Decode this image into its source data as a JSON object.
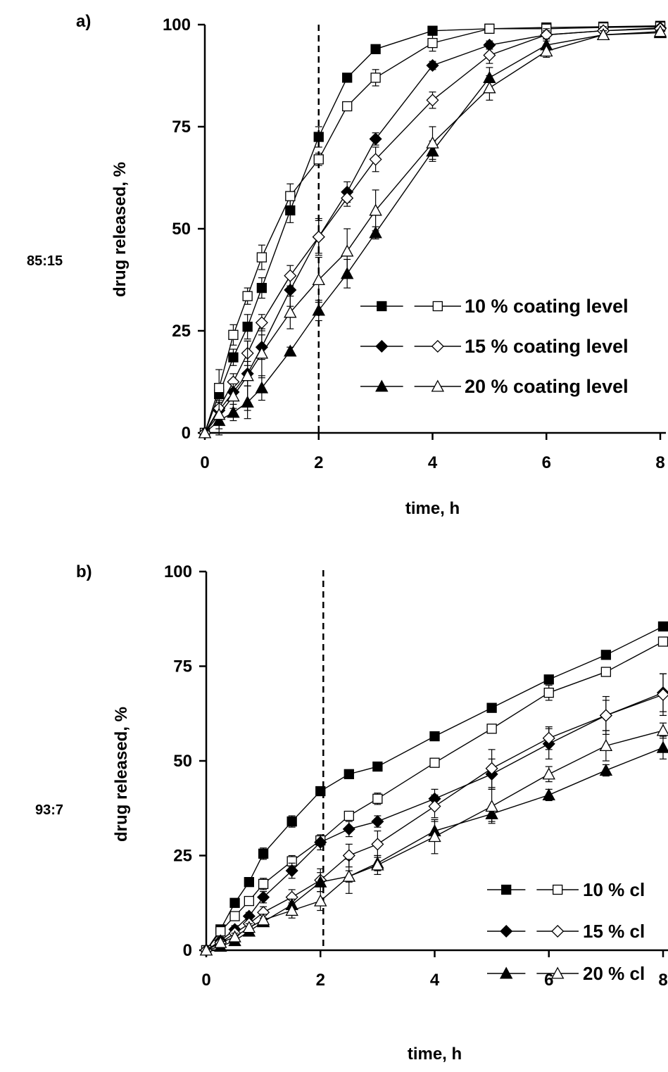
{
  "chart_data": [
    {
      "type": "line",
      "panel_label": "a)",
      "side_label": "85:15",
      "xlabel": "time, h",
      "ylabel": "drug released, %",
      "xlim": [
        0,
        8
      ],
      "ylim": [
        0,
        100
      ],
      "xticks": [
        "0",
        "2",
        "4",
        "6",
        "8"
      ],
      "yticks": [
        "0",
        "25",
        "50",
        "75",
        "100"
      ],
      "vline_x": 2,
      "legend_position": "lower-right",
      "legend_labels": [
        "10 % coating level",
        "15 % coating level",
        "20 % coating level"
      ],
      "series": [
        {
          "marker": "square-filled",
          "x": [
            0,
            0.25,
            0.5,
            0.75,
            1,
            1.5,
            2,
            2.5,
            3,
            4,
            5,
            6,
            7,
            8
          ],
          "y": [
            0,
            9.5,
            18.5,
            26,
            35.5,
            54.5,
            72.5,
            87,
            94,
            98.5,
            99,
            99.3,
            99.5,
            99.7
          ],
          "err": [
            0,
            2,
            2,
            3,
            2.5,
            3,
            2.5,
            1,
            1,
            1,
            0.5,
            0.5,
            0.5,
            0.5
          ]
        },
        {
          "marker": "square-open",
          "x": [
            0,
            0.25,
            0.5,
            0.75,
            1,
            1.5,
            2,
            2.5,
            3,
            4,
            5,
            6,
            7,
            8
          ],
          "y": [
            0,
            11,
            24,
            33.5,
            43,
            58,
            67,
            80,
            87,
            95.5,
            99,
            99,
            99.3,
            99.5
          ],
          "err": [
            0,
            4.5,
            2.5,
            2,
            3,
            3,
            1.5,
            1,
            2,
            2,
            1,
            0.5,
            0.5,
            0.5
          ]
        },
        {
          "marker": "diamond-filled",
          "x": [
            0,
            0.25,
            0.5,
            0.75,
            1,
            1.5,
            2,
            2.5,
            3,
            4,
            5,
            6,
            7,
            8
          ],
          "y": [
            0,
            5.5,
            10,
            14.5,
            21,
            35,
            48,
            59,
            72,
            90,
            95,
            97.5,
            98.5,
            99.2
          ],
          "err": [
            0,
            2,
            2,
            3,
            3,
            4,
            4,
            2.5,
            1.5,
            1,
            1,
            1,
            0.5,
            0.5
          ]
        },
        {
          "marker": "diamond-open",
          "x": [
            0,
            0.25,
            0.5,
            0.75,
            1,
            1.5,
            2,
            2.5,
            3,
            4,
            5,
            6,
            7,
            8
          ],
          "y": [
            0,
            6,
            12.5,
            19.5,
            27,
            38.5,
            48,
            57.5,
            67,
            81.5,
            92.5,
            97.5,
            98.5,
            99
          ],
          "err": [
            0,
            2,
            2,
            3,
            2,
            2.5,
            4.5,
            2,
            3,
            2,
            2,
            1.5,
            1,
            0.5
          ]
        },
        {
          "marker": "triangle-filled",
          "x": [
            0,
            0.25,
            0.5,
            0.75,
            1,
            1.5,
            2,
            2.5,
            3,
            4,
            5,
            6,
            7,
            8
          ],
          "y": [
            0,
            3,
            5,
            7.5,
            11,
            20,
            30,
            39,
            49,
            69,
            87,
            95,
            97.5,
            98
          ],
          "err": [
            0,
            2,
            2,
            4,
            3,
            1,
            2.5,
            3.5,
            1.5,
            2.5,
            2.5,
            1.5,
            1,
            0.5
          ]
        },
        {
          "marker": "triangle-open",
          "x": [
            0,
            0.25,
            0.5,
            0.75,
            1,
            1.5,
            2,
            2.5,
            3,
            4,
            5,
            6,
            7,
            8
          ],
          "y": [
            0,
            4.5,
            9,
            14,
            19.5,
            29.5,
            37.5,
            44.5,
            54.5,
            71,
            84.5,
            93.5,
            97.5,
            98.3
          ],
          "err": [
            0,
            5,
            3,
            8.5,
            6,
            4,
            5.5,
            5.5,
            5,
            4,
            3,
            1.5,
            1,
            0.5
          ]
        }
      ]
    },
    {
      "type": "line",
      "panel_label": "b)",
      "side_label": "93:7",
      "xlabel": "time, h",
      "ylabel": "drug released, %",
      "xlim": [
        0,
        8
      ],
      "ylim": [
        0,
        100
      ],
      "xticks": [
        "0",
        "2",
        "4",
        "6",
        "8"
      ],
      "yticks": [
        "0",
        "25",
        "50",
        "75",
        "100"
      ],
      "vline_x": 2.05,
      "legend_position": "lower-right",
      "legend_labels": [
        "10 % cl",
        "15 % cl",
        "20 % cl"
      ],
      "series": [
        {
          "marker": "square-filled",
          "x": [
            0,
            0.25,
            0.5,
            0.75,
            1,
            1.5,
            2,
            2.5,
            3,
            4,
            5,
            6,
            7,
            8
          ],
          "y": [
            0,
            5.5,
            12.5,
            18,
            25.5,
            34,
            42,
            46.5,
            48.5,
            56.5,
            64,
            71.5,
            78,
            85.5
          ],
          "err": [
            0,
            1,
            1,
            1,
            1.5,
            1.5,
            1,
            1,
            1,
            1,
            1,
            1,
            1,
            1
          ]
        },
        {
          "marker": "square-open",
          "x": [
            0,
            0.25,
            0.5,
            0.75,
            1,
            1.5,
            2,
            2.5,
            3,
            4,
            5,
            6,
            7,
            8
          ],
          "y": [
            0,
            5,
            9,
            13,
            17.5,
            23.5,
            29,
            35.5,
            40,
            49.5,
            58.5,
            68,
            73.5,
            81.5
          ],
          "err": [
            0,
            1,
            1,
            1,
            1.5,
            1.5,
            1,
            1,
            1.5,
            1,
            1,
            2,
            1,
            1
          ]
        },
        {
          "marker": "diamond-filled",
          "x": [
            0,
            0.25,
            0.5,
            0.75,
            1,
            1.5,
            2,
            2.5,
            3,
            4,
            5,
            6,
            7,
            8
          ],
          "y": [
            0,
            2.5,
            5.5,
            9,
            14,
            21,
            28.5,
            32,
            34,
            40,
            46.5,
            54.5,
            62,
            68
          ],
          "err": [
            0,
            1,
            1,
            1,
            1.5,
            2,
            2,
            2,
            1.5,
            2.5,
            4,
            4,
            5,
            5
          ]
        },
        {
          "marker": "diamond-open",
          "x": [
            0,
            0.25,
            0.5,
            0.75,
            1,
            1.5,
            2,
            2.5,
            3,
            4,
            5,
            6,
            7,
            8
          ],
          "y": [
            0,
            2,
            4.5,
            7,
            10,
            14,
            18.5,
            25,
            28,
            38,
            48,
            56,
            62,
            67.5
          ],
          "err": [
            0,
            1,
            1,
            1.5,
            1.5,
            2,
            3,
            3,
            3.5,
            3,
            5,
            3,
            4,
            5.5
          ]
        },
        {
          "marker": "triangle-filled",
          "x": [
            0,
            0.25,
            0.5,
            0.75,
            1,
            1.5,
            2,
            2.5,
            3,
            4,
            5,
            6,
            7,
            8
          ],
          "y": [
            0,
            1,
            2.5,
            5,
            7.5,
            12,
            18,
            19.5,
            23,
            31.5,
            36,
            41,
            47.5,
            53.5
          ],
          "err": [
            0,
            1,
            1,
            1,
            1,
            1.5,
            2.5,
            1.5,
            2,
            2.5,
            2,
            1.5,
            1.5,
            3
          ]
        },
        {
          "marker": "triangle-open",
          "x": [
            0,
            0.25,
            0.5,
            0.75,
            1,
            1.5,
            2,
            2.5,
            3,
            4,
            5,
            6,
            7,
            8
          ],
          "y": [
            0,
            2,
            3.5,
            6,
            8,
            10.5,
            13,
            19.5,
            22.5,
            30,
            38,
            46.5,
            54,
            58
          ],
          "err": [
            0,
            1,
            1,
            1,
            1.5,
            2,
            2.5,
            4.5,
            2.5,
            4.5,
            4.5,
            2,
            4,
            2
          ]
        }
      ]
    }
  ]
}
